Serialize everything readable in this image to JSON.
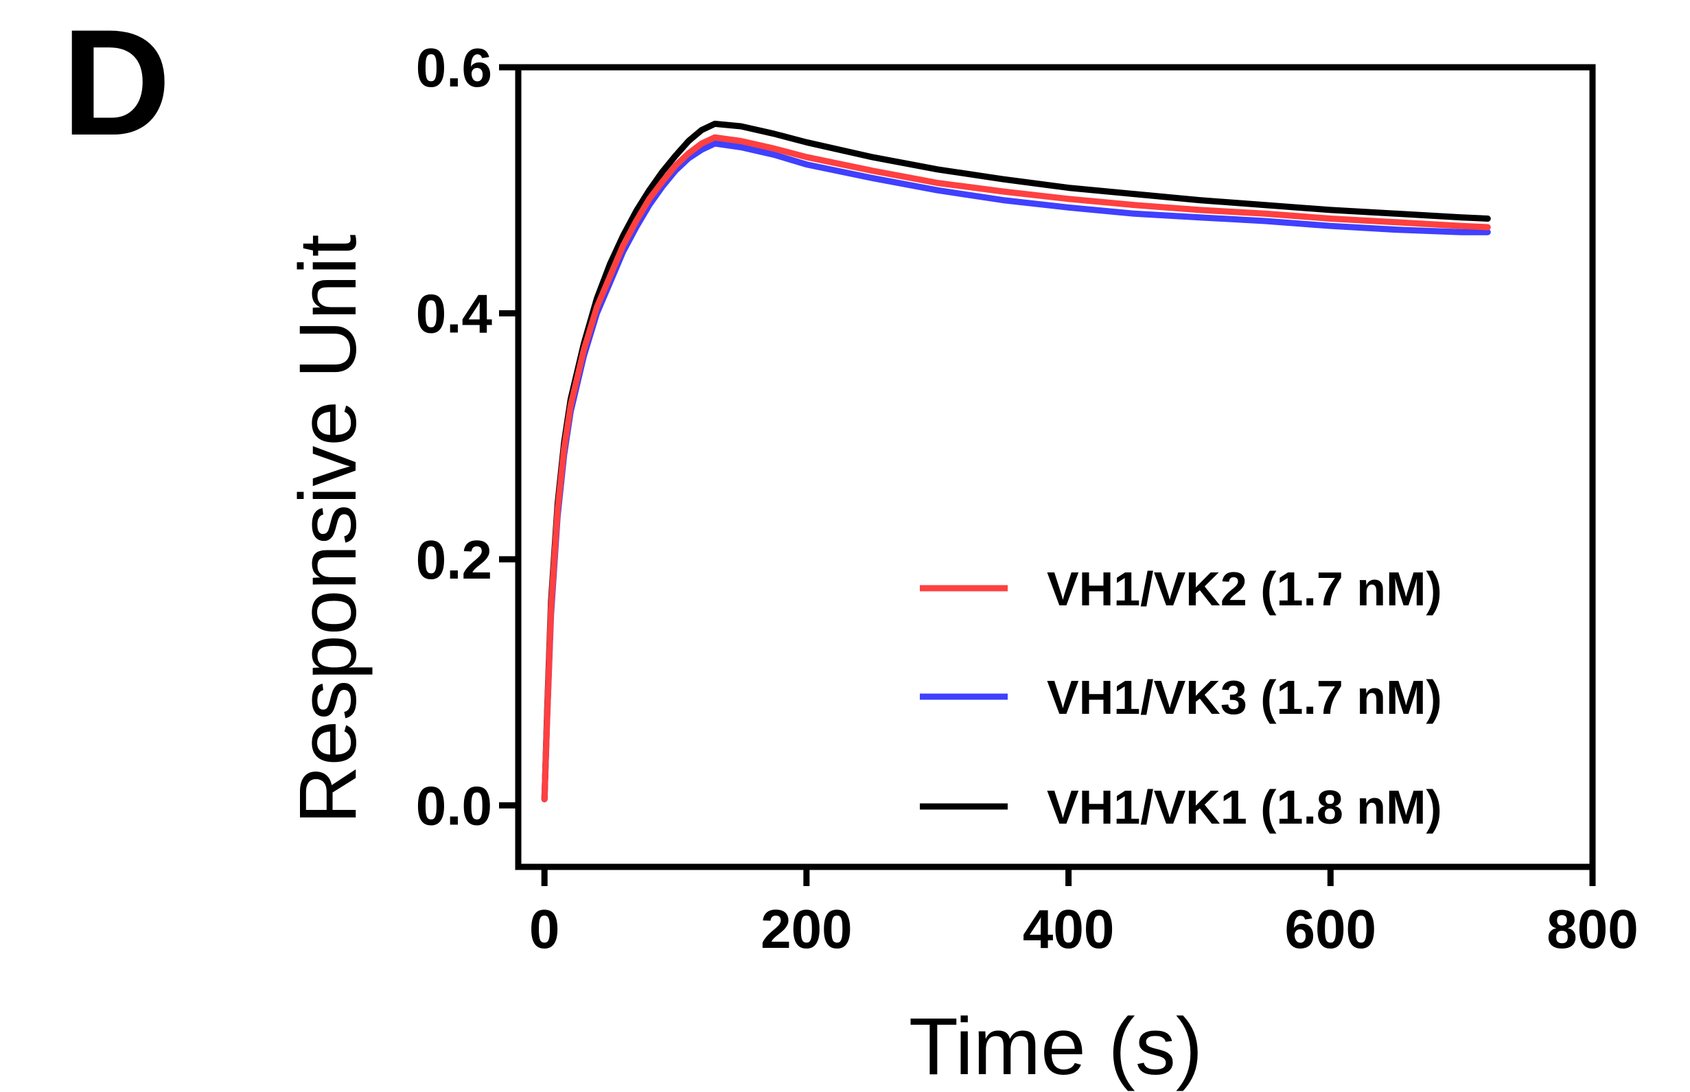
{
  "panel_label": "D",
  "chart_data": {
    "type": "line",
    "title": "",
    "xlabel": "Time (s)",
    "ylabel": "Responsive Unit",
    "xlim": [
      -20,
      800
    ],
    "ylim": [
      -0.05,
      0.6
    ],
    "xticks": [
      0,
      200,
      400,
      600,
      800
    ],
    "xtick_labels": [
      "0",
      "200",
      "400",
      "600",
      "800"
    ],
    "yticks": [
      0.0,
      0.2,
      0.4,
      0.6
    ],
    "ytick_labels": [
      "0.0",
      "0.2",
      "0.4",
      "0.6"
    ],
    "grid": false,
    "legend_position": "bottom-right",
    "series": [
      {
        "name": "VH1/VK2 (1.7 nM)",
        "color": "#ff4040",
        "x": [
          0,
          2,
          5,
          10,
          15,
          20,
          30,
          40,
          50,
          60,
          70,
          80,
          90,
          100,
          110,
          120,
          130,
          150,
          175,
          200,
          250,
          300,
          350,
          400,
          450,
          500,
          550,
          600,
          650,
          700,
          720
        ],
        "y": [
          0.005,
          0.07,
          0.16,
          0.24,
          0.29,
          0.325,
          0.37,
          0.405,
          0.43,
          0.455,
          0.475,
          0.493,
          0.507,
          0.52,
          0.53,
          0.538,
          0.543,
          0.54,
          0.534,
          0.527,
          0.516,
          0.506,
          0.499,
          0.493,
          0.488,
          0.484,
          0.481,
          0.477,
          0.474,
          0.471,
          0.47
        ]
      },
      {
        "name": "VH1/VK3 (1.7 nM)",
        "color": "#4040ff",
        "x": [
          0,
          2,
          5,
          10,
          15,
          20,
          30,
          40,
          50,
          60,
          70,
          80,
          90,
          100,
          110,
          120,
          130,
          150,
          175,
          200,
          250,
          300,
          350,
          400,
          450,
          500,
          550,
          600,
          650,
          700,
          720
        ],
        "y": [
          0.005,
          0.07,
          0.155,
          0.235,
          0.285,
          0.32,
          0.365,
          0.4,
          0.425,
          0.45,
          0.47,
          0.488,
          0.503,
          0.516,
          0.526,
          0.533,
          0.538,
          0.535,
          0.529,
          0.521,
          0.51,
          0.5,
          0.492,
          0.486,
          0.481,
          0.478,
          0.475,
          0.471,
          0.468,
          0.466,
          0.466
        ]
      },
      {
        "name": "VH1/VK1 (1.8 nM)",
        "color": "#000000",
        "x": [
          0,
          2,
          5,
          10,
          15,
          20,
          30,
          40,
          50,
          60,
          70,
          80,
          90,
          100,
          110,
          120,
          130,
          150,
          175,
          200,
          250,
          300,
          350,
          400,
          450,
          500,
          550,
          600,
          650,
          700,
          720
        ],
        "y": [
          0.005,
          0.075,
          0.165,
          0.245,
          0.295,
          0.33,
          0.375,
          0.412,
          0.44,
          0.463,
          0.483,
          0.5,
          0.515,
          0.528,
          0.54,
          0.549,
          0.554,
          0.552,
          0.546,
          0.539,
          0.527,
          0.517,
          0.509,
          0.502,
          0.497,
          0.492,
          0.488,
          0.484,
          0.481,
          0.478,
          0.477
        ]
      }
    ]
  }
}
